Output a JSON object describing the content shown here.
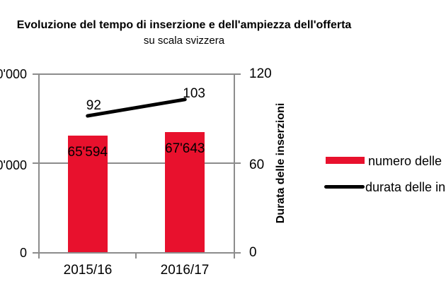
{
  "title": "Evoluzione del tempo di inserzione e dell'ampiezza dell'offerta",
  "subtitle": "su scala svizzera",
  "colors": {
    "bar": "#E8112D",
    "line": "#000000",
    "axis_gray": "#8C8C8C"
  },
  "chart_data": {
    "type": "bar",
    "subtype": "combo bar + line, dual axis",
    "categories": [
      "2015/16",
      "2016/17"
    ],
    "series": [
      {
        "name": "numero delle inserzioni",
        "type": "bar",
        "axis": "left",
        "values": [
          65594,
          67643
        ],
        "data_labels": [
          "65'594",
          "67'643"
        ],
        "color": "#E8112D"
      },
      {
        "name": "durata delle inserzioni",
        "type": "line",
        "axis": "right",
        "values": [
          92,
          103
        ],
        "data_labels": [
          "92",
          "103"
        ],
        "color": "#000000"
      }
    ],
    "left_axis": {
      "range": [
        0,
        100000
      ],
      "visible_tick_labels": [
        "0'000",
        "0'000",
        "0"
      ],
      "note": "labels clipped at left image edge"
    },
    "right_axis": {
      "range": [
        0,
        120
      ],
      "tick_labels": [
        "120",
        "60",
        "0"
      ],
      "title": "Durata delle inserzioni"
    },
    "grid": "one horizontal gridline at middle tick",
    "legend_position": "right, clipped at right image edge"
  }
}
